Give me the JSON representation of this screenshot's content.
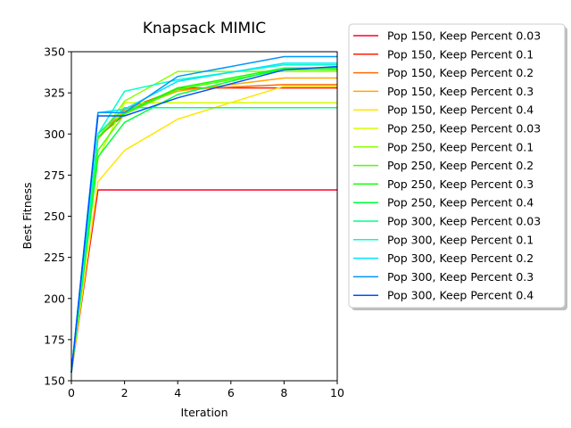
{
  "chart_data": {
    "type": "line",
    "title": "Knapsack MIMIC",
    "xlabel": "Iteration",
    "ylabel": "Best Fitness",
    "xlim": [
      0,
      10
    ],
    "ylim": [
      150,
      350
    ],
    "xticks": [
      "0",
      "2",
      "4",
      "6",
      "8",
      "10"
    ],
    "yticks": [
      "150",
      "175",
      "200",
      "225",
      "250",
      "275",
      "300",
      "325",
      "350"
    ],
    "legend_position": "outside-right",
    "series": [
      {
        "name": "Pop 150, Keep Percent 0.03",
        "color": "#ff0029",
        "x": [
          0,
          1,
          2,
          4,
          8,
          10
        ],
        "y": [
          155,
          266,
          266,
          266,
          266,
          266
        ]
      },
      {
        "name": "Pop 150, Keep Percent 0.1",
        "color": "#ff1f00",
        "x": [
          0,
          1,
          2,
          4,
          8,
          10
        ],
        "y": [
          155,
          298,
          312,
          328,
          328,
          328
        ]
      },
      {
        "name": "Pop 150, Keep Percent 0.2",
        "color": "#ff6a00",
        "x": [
          0,
          1,
          2,
          4,
          8,
          10
        ],
        "y": [
          155,
          297,
          315,
          327,
          330,
          330
        ]
      },
      {
        "name": "Pop 150, Keep Percent 0.3",
        "color": "#ffa600",
        "x": [
          0,
          1,
          2,
          4,
          8,
          10
        ],
        "y": [
          155,
          300,
          314,
          326,
          334,
          334
        ]
      },
      {
        "name": "Pop 150, Keep Percent 0.4",
        "color": "#ffe600",
        "x": [
          0,
          1,
          2,
          4,
          8,
          10
        ],
        "y": [
          155,
          271,
          290,
          309,
          329,
          329
        ]
      },
      {
        "name": "Pop 250, Keep Percent 0.03",
        "color": "#d4ff00",
        "x": [
          0,
          1,
          2,
          4,
          8,
          10
        ],
        "y": [
          155,
          285,
          319,
          319,
          319,
          319
        ]
      },
      {
        "name": "Pop 250, Keep Percent 0.1",
        "color": "#8cff00",
        "x": [
          0,
          1,
          2,
          4,
          8,
          10
        ],
        "y": [
          155,
          297,
          320,
          338,
          338,
          338
        ]
      },
      {
        "name": "Pop 250, Keep Percent 0.2",
        "color": "#4cff00",
        "x": [
          0,
          1,
          2,
          4,
          8,
          10
        ],
        "y": [
          155,
          290,
          312,
          327,
          339,
          339
        ]
      },
      {
        "name": "Pop 250, Keep Percent 0.3",
        "color": "#10ff00",
        "x": [
          0,
          1,
          2,
          4,
          8,
          10
        ],
        "y": [
          155,
          298,
          313,
          328,
          340,
          340
        ]
      },
      {
        "name": "Pop 250, Keep Percent 0.4",
        "color": "#00ff3a",
        "x": [
          0,
          1,
          2,
          4,
          8,
          10
        ],
        "y": [
          155,
          286,
          307,
          324,
          340,
          340
        ]
      },
      {
        "name": "Pop 300, Keep Percent 0.03",
        "color": "#00ff8a",
        "x": [
          0,
          1,
          2,
          4,
          8,
          10
        ],
        "y": [
          155,
          300,
          316,
          316,
          316,
          316
        ]
      },
      {
        "name": "Pop 300, Keep Percent 0.1",
        "color": "#00ffcc",
        "x": [
          0,
          1,
          2,
          4,
          8,
          10
        ],
        "y": [
          155,
          300,
          326,
          333,
          342,
          342
        ]
      },
      {
        "name": "Pop 300, Keep Percent 0.2",
        "color": "#00e5ff",
        "x": [
          0,
          1,
          2,
          4,
          8,
          10
        ],
        "y": [
          155,
          313,
          315,
          332,
          343,
          343
        ]
      },
      {
        "name": "Pop 300, Keep Percent 0.3",
        "color": "#0095ff",
        "x": [
          0,
          1,
          2,
          4,
          8,
          10
        ],
        "y": [
          155,
          313,
          313,
          335,
          347,
          347
        ]
      },
      {
        "name": "Pop 300, Keep Percent 0.4",
        "color": "#0050ff",
        "x": [
          0,
          1,
          2,
          4,
          8,
          10
        ],
        "y": [
          155,
          311,
          311,
          322,
          339,
          341
        ]
      }
    ]
  }
}
